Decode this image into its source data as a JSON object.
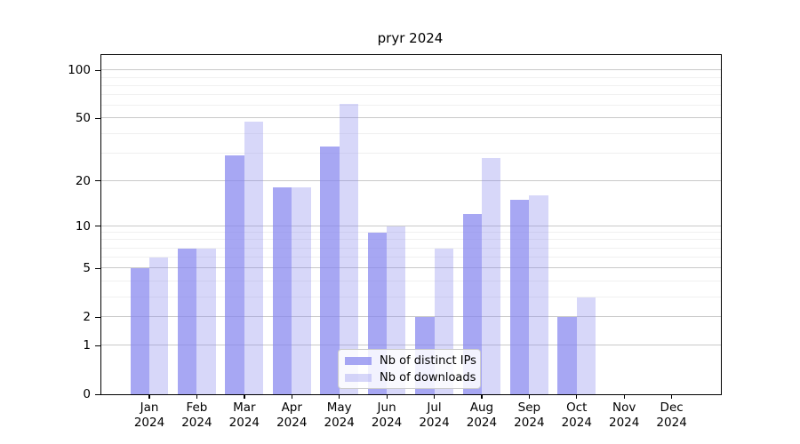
{
  "chart_data": {
    "type": "bar",
    "title": "pryr 2024",
    "categories": [
      {
        "month": "Jan",
        "year": "2024"
      },
      {
        "month": "Feb",
        "year": "2024"
      },
      {
        "month": "Mar",
        "year": "2024"
      },
      {
        "month": "Apr",
        "year": "2024"
      },
      {
        "month": "May",
        "year": "2024"
      },
      {
        "month": "Jun",
        "year": "2024"
      },
      {
        "month": "Jul",
        "year": "2024"
      },
      {
        "month": "Aug",
        "year": "2024"
      },
      {
        "month": "Sep",
        "year": "2024"
      },
      {
        "month": "Oct",
        "year": "2024"
      },
      {
        "month": "Nov",
        "year": "2024"
      },
      {
        "month": "Dec",
        "year": "2024"
      }
    ],
    "series": [
      {
        "name": "Nb of distinct IPs",
        "color": "rgba(133,133,238,0.72)",
        "values": [
          5,
          7,
          29,
          18,
          33,
          9,
          2,
          12,
          15,
          2,
          0,
          0
        ]
      },
      {
        "name": "Nb of downloads",
        "color": "rgba(133,133,238,0.33)",
        "values": [
          6,
          7,
          48,
          18,
          62,
          10,
          7,
          28,
          16,
          3,
          0,
          0
        ]
      }
    ],
    "xlabel": "",
    "ylabel": "",
    "yscale": "log1p",
    "ylim": [
      0,
      125
    ],
    "yticks": [
      0,
      1,
      2,
      5,
      10,
      20,
      50,
      100
    ],
    "yticks_minor": [
      3,
      4,
      6,
      7,
      8,
      9,
      30,
      40,
      60,
      70,
      80,
      90
    ],
    "grid": "on",
    "legend_position": "lower center"
  },
  "colors": {
    "bar_base": "#8585ee",
    "grid_major": "#c9c9c9",
    "grid_minor": "#f0f0f0",
    "spine": "#000000",
    "background": "#ffffff"
  }
}
